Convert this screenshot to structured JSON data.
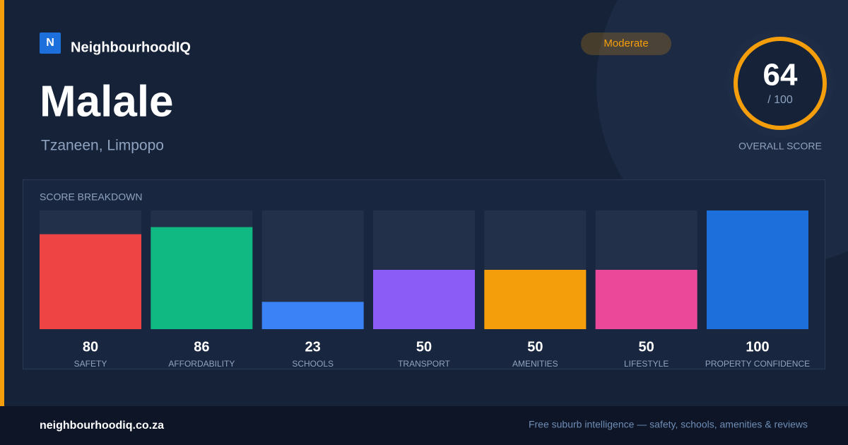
{
  "header": {
    "logo_letter": "N",
    "brand": "NeighbourhoodIQ",
    "title": "Malale",
    "subtitle": "Tzaneen, Limpopo",
    "rating": "Moderate"
  },
  "score": {
    "value": 64,
    "max_label": "/ 100",
    "label": "OVERALL SCORE"
  },
  "breakdown": {
    "title": "SCORE BREAKDOWN",
    "type": "bar",
    "ylim": [
      0,
      100
    ],
    "categories": [
      "SAFETY",
      "AFFORDABILITY",
      "SCHOOLS",
      "TRANSPORT",
      "AMENITIES",
      "LIFESTYLE",
      "PROPERTY CONFIDENCE"
    ],
    "values": [
      80,
      86,
      23,
      50,
      50,
      50,
      100
    ],
    "colors": [
      "#ef4444",
      "#10b981",
      "#3b82f6",
      "#8b5cf6",
      "#f59e0b",
      "#ec4899",
      "#1d6fdc"
    ]
  },
  "footer": {
    "site": "neighbourhoodiq.co.za",
    "tagline": "Free suburb intelligence — safety, schools, amenities & reviews"
  }
}
